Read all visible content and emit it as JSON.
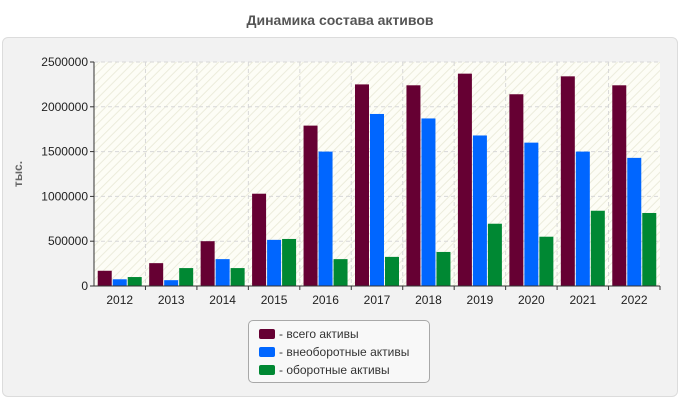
{
  "title": "Динамика состава активов",
  "chart_data": {
    "type": "bar",
    "title": "Динамика состава активов",
    "xlabel": "",
    "ylabel": "тыс.",
    "ylim": [
      0,
      2500000
    ],
    "yticks": [
      "0",
      "500000",
      "1000000",
      "1500000",
      "2000000",
      "2500000"
    ],
    "ytick_values": [
      0,
      500000,
      1000000,
      1500000,
      2000000,
      2500000
    ],
    "categories": [
      "2012",
      "2013",
      "2014",
      "2015",
      "2016",
      "2017",
      "2018",
      "2019",
      "2020",
      "2021",
      "2022"
    ],
    "series": [
      {
        "name": "- всего активы",
        "color": "#660033",
        "values": [
          170000,
          255000,
          500000,
          1030000,
          1790000,
          2250000,
          2240000,
          2370000,
          2140000,
          2340000,
          2240000
        ]
      },
      {
        "name": "- внеоборотные активы",
        "color": "#0066ff",
        "values": [
          75000,
          65000,
          300000,
          515000,
          1500000,
          1920000,
          1870000,
          1680000,
          1600000,
          1500000,
          1430000
        ]
      },
      {
        "name": "- оборотные активы",
        "color": "#008833",
        "values": [
          100000,
          200000,
          200000,
          525000,
          300000,
          325000,
          380000,
          695000,
          550000,
          840000,
          815000
        ]
      }
    ],
    "grid": true,
    "legend_position": "bottom"
  }
}
